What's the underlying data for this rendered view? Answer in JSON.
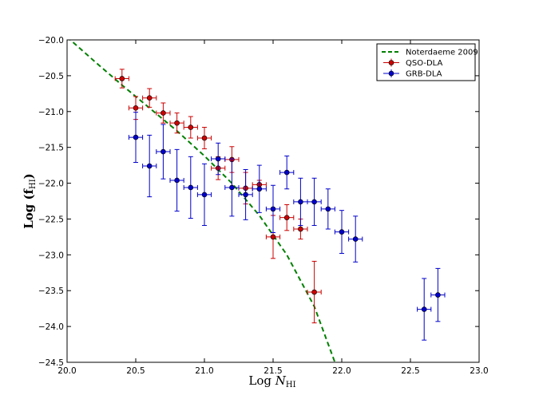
{
  "chart_data": {
    "type": "scatter",
    "xlabel": "Log N_HI",
    "ylabel": "Log (f_HI)",
    "xlim": [
      20.0,
      23.0
    ],
    "ylim": [
      -24.5,
      -20.0
    ],
    "xticks": [
      "20.0",
      "20.5",
      "21.0",
      "21.5",
      "22.0",
      "22.5",
      "23.0"
    ],
    "yticks": [
      "-20.0",
      "-20.5",
      "-21.0",
      "-21.5",
      "-22.0",
      "-22.5",
      "-23.0",
      "-23.5",
      "-24.0",
      "-24.5"
    ],
    "legend_position": "top-right",
    "grid": false,
    "series": [
      {
        "name": "Noterdaeme 2009",
        "kind": "dashed-line",
        "color": "#008000",
        "x": [
          20.0,
          20.2,
          20.4,
          20.6,
          20.8,
          21.0,
          21.2,
          21.4,
          21.6,
          21.8,
          21.95
        ],
        "y": [
          -19.96,
          -20.3,
          -20.63,
          -20.95,
          -21.27,
          -21.62,
          -22.0,
          -22.45,
          -23.0,
          -23.72,
          -24.5
        ]
      },
      {
        "name": "QSO-DLA",
        "kind": "errorbar",
        "color": "#cc0000",
        "points": [
          {
            "x": 20.4,
            "y": -20.54,
            "xerr": 0.05,
            "yerr": 0.13
          },
          {
            "x": 20.5,
            "y": -20.95,
            "xerr": 0.05,
            "yerr": 0.16
          },
          {
            "x": 20.6,
            "y": -20.81,
            "xerr": 0.05,
            "yerr": 0.13
          },
          {
            "x": 20.7,
            "y": -21.02,
            "xerr": 0.05,
            "yerr": 0.14
          },
          {
            "x": 20.8,
            "y": -21.16,
            "xerr": 0.05,
            "yerr": 0.14
          },
          {
            "x": 20.9,
            "y": -21.22,
            "xerr": 0.05,
            "yerr": 0.15
          },
          {
            "x": 21.0,
            "y": -21.37,
            "xerr": 0.05,
            "yerr": 0.15
          },
          {
            "x": 21.1,
            "y": -21.79,
            "xerr": 0.05,
            "yerr": 0.16
          },
          {
            "x": 21.2,
            "y": -21.67,
            "xerr": 0.05,
            "yerr": 0.18
          },
          {
            "x": 21.3,
            "y": -22.07,
            "xerr": 0.05,
            "yerr": 0.22
          },
          {
            "x": 21.4,
            "y": -22.02,
            "xerr": 0.05,
            "yerr": 0.06
          },
          {
            "x": 21.5,
            "y": -22.75,
            "xerr": 0.05,
            "yerr": 0.3
          },
          {
            "x": 21.6,
            "y": -22.48,
            "xerr": 0.05,
            "yerr": 0.18
          },
          {
            "x": 21.7,
            "y": -22.64,
            "xerr": 0.05,
            "yerr": 0.14
          },
          {
            "x": 21.8,
            "y": -23.52,
            "xerr": 0.05,
            "yerr": 0.43
          }
        ]
      },
      {
        "name": "GRB-DLA",
        "kind": "errorbar",
        "color": "#0000cc",
        "points": [
          {
            "x": 20.5,
            "y": -21.36,
            "xerr": 0.05,
            "yerr": 0.35
          },
          {
            "x": 20.6,
            "y": -21.76,
            "xerr": 0.05,
            "yerr": 0.43
          },
          {
            "x": 20.7,
            "y": -21.56,
            "xerr": 0.05,
            "yerr": 0.38
          },
          {
            "x": 20.8,
            "y": -21.96,
            "xerr": 0.05,
            "yerr": 0.43
          },
          {
            "x": 20.9,
            "y": -22.06,
            "xerr": 0.05,
            "yerr": 0.43
          },
          {
            "x": 21.0,
            "y": -22.16,
            "xerr": 0.05,
            "yerr": 0.43
          },
          {
            "x": 21.1,
            "y": -21.66,
            "xerr": 0.05,
            "yerr": 0.22
          },
          {
            "x": 21.2,
            "y": -22.06,
            "xerr": 0.05,
            "yerr": 0.4
          },
          {
            "x": 21.3,
            "y": -22.16,
            "xerr": 0.05,
            "yerr": 0.35
          },
          {
            "x": 21.4,
            "y": -22.08,
            "xerr": 0.05,
            "yerr": 0.33
          },
          {
            "x": 21.5,
            "y": -22.36,
            "xerr": 0.05,
            "yerr": 0.33
          },
          {
            "x": 21.6,
            "y": -21.85,
            "xerr": 0.05,
            "yerr": 0.23
          },
          {
            "x": 21.7,
            "y": -22.26,
            "xerr": 0.05,
            "yerr": 0.33
          },
          {
            "x": 21.8,
            "y": -22.26,
            "xerr": 0.05,
            "yerr": 0.33
          },
          {
            "x": 21.9,
            "y": -22.36,
            "xerr": 0.05,
            "yerr": 0.28
          },
          {
            "x": 22.0,
            "y": -22.68,
            "xerr": 0.05,
            "yerr": 0.3
          },
          {
            "x": 22.1,
            "y": -22.78,
            "xerr": 0.05,
            "yerr": 0.32
          },
          {
            "x": 22.6,
            "y": -23.76,
            "xerr": 0.05,
            "yerr": 0.43
          },
          {
            "x": 22.7,
            "y": -23.56,
            "xerr": 0.05,
            "yerr": 0.37
          }
        ]
      }
    ]
  }
}
